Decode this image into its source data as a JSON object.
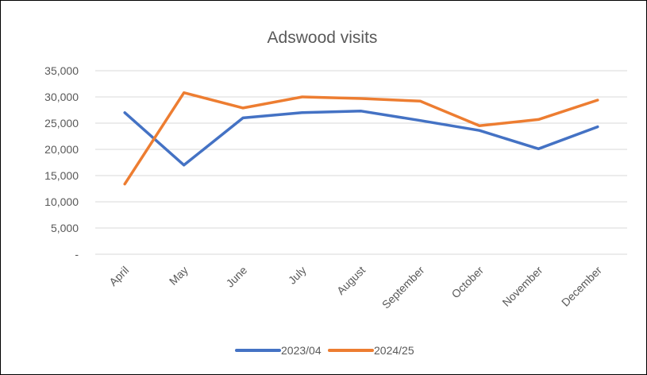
{
  "chart_data": {
    "type": "line",
    "title": "Adswood visits",
    "categories": [
      "April",
      "May",
      "June",
      "July",
      "August",
      "September",
      "October",
      "November",
      "December"
    ],
    "series": [
      {
        "name": "2023/04",
        "color": "#4472C4",
        "values": [
          27000,
          17000,
          26000,
          27000,
          27300,
          25500,
          23600,
          20100,
          24300
        ]
      },
      {
        "name": "2024/25",
        "color": "#ED7D31",
        "values": [
          13400,
          30800,
          27900,
          30000,
          29700,
          29200,
          24500,
          25700,
          29400
        ]
      }
    ],
    "ylim": [
      0,
      35000
    ],
    "yticks": [
      0,
      5000,
      10000,
      15000,
      20000,
      25000,
      30000,
      35000
    ],
    "ytick_labels": [
      "-",
      "5,000",
      "10,000",
      "15,000",
      "20,000",
      "25,000",
      "30,000",
      "35,000"
    ],
    "grid": true,
    "legend_position": "bottom",
    "gridline_color": "#D9D9D9",
    "text_color": "#595959"
  }
}
